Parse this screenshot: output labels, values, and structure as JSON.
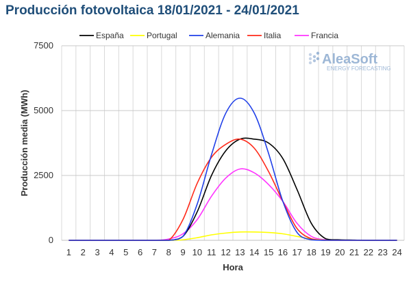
{
  "title": "Producción fotovoltaica 18/01/2021 - 24/01/2021",
  "logo": {
    "brand": "AleaSoft",
    "tagline": "ENERGY FORECASTING",
    "brand_color": "#9db7d6"
  },
  "chart_data": {
    "type": "line",
    "title": "Producción fotovoltaica 18/01/2021 - 24/01/2021",
    "xlabel": "Hora",
    "ylabel": "Producción media (MWh)",
    "x": [
      1,
      2,
      3,
      4,
      5,
      6,
      7,
      8,
      9,
      10,
      11,
      12,
      13,
      14,
      15,
      16,
      17,
      18,
      19,
      20,
      21,
      22,
      23,
      24
    ],
    "ylim": [
      0,
      7500
    ],
    "yticks": [
      0,
      2500,
      5000,
      7500
    ],
    "grid": true,
    "legend_position": "top",
    "series": [
      {
        "name": "España",
        "color": "#000000",
        "values": [
          0,
          0,
          0,
          0,
          0,
          0,
          0,
          0,
          150,
          1100,
          2500,
          3450,
          3900,
          3900,
          3750,
          3150,
          1950,
          650,
          60,
          20,
          10,
          0,
          0,
          0
        ]
      },
      {
        "name": "Portugal",
        "color": "#ffff00",
        "values": [
          0,
          0,
          0,
          0,
          0,
          0,
          0,
          0,
          20,
          100,
          210,
          280,
          320,
          320,
          300,
          250,
          150,
          50,
          5,
          0,
          0,
          0,
          0,
          0
        ]
      },
      {
        "name": "Alemania",
        "color": "#1f3fe8",
        "values": [
          0,
          0,
          0,
          0,
          0,
          0,
          0,
          0,
          150,
          1400,
          3300,
          4900,
          5480,
          4900,
          3350,
          1500,
          300,
          20,
          0,
          0,
          0,
          0,
          0,
          0
        ]
      },
      {
        "name": "Italia",
        "color": "#ff2a1a",
        "values": [
          0,
          0,
          0,
          0,
          0,
          0,
          0,
          0,
          800,
          2200,
          3200,
          3700,
          3900,
          3550,
          2650,
          1500,
          450,
          60,
          0,
          0,
          0,
          0,
          0,
          0
        ]
      },
      {
        "name": "Francia",
        "color": "#ff33ff",
        "values": [
          0,
          0,
          0,
          0,
          0,
          0,
          0,
          50,
          250,
          800,
          1700,
          2400,
          2750,
          2600,
          2150,
          1500,
          650,
          150,
          20,
          0,
          0,
          0,
          0,
          0
        ]
      }
    ]
  }
}
